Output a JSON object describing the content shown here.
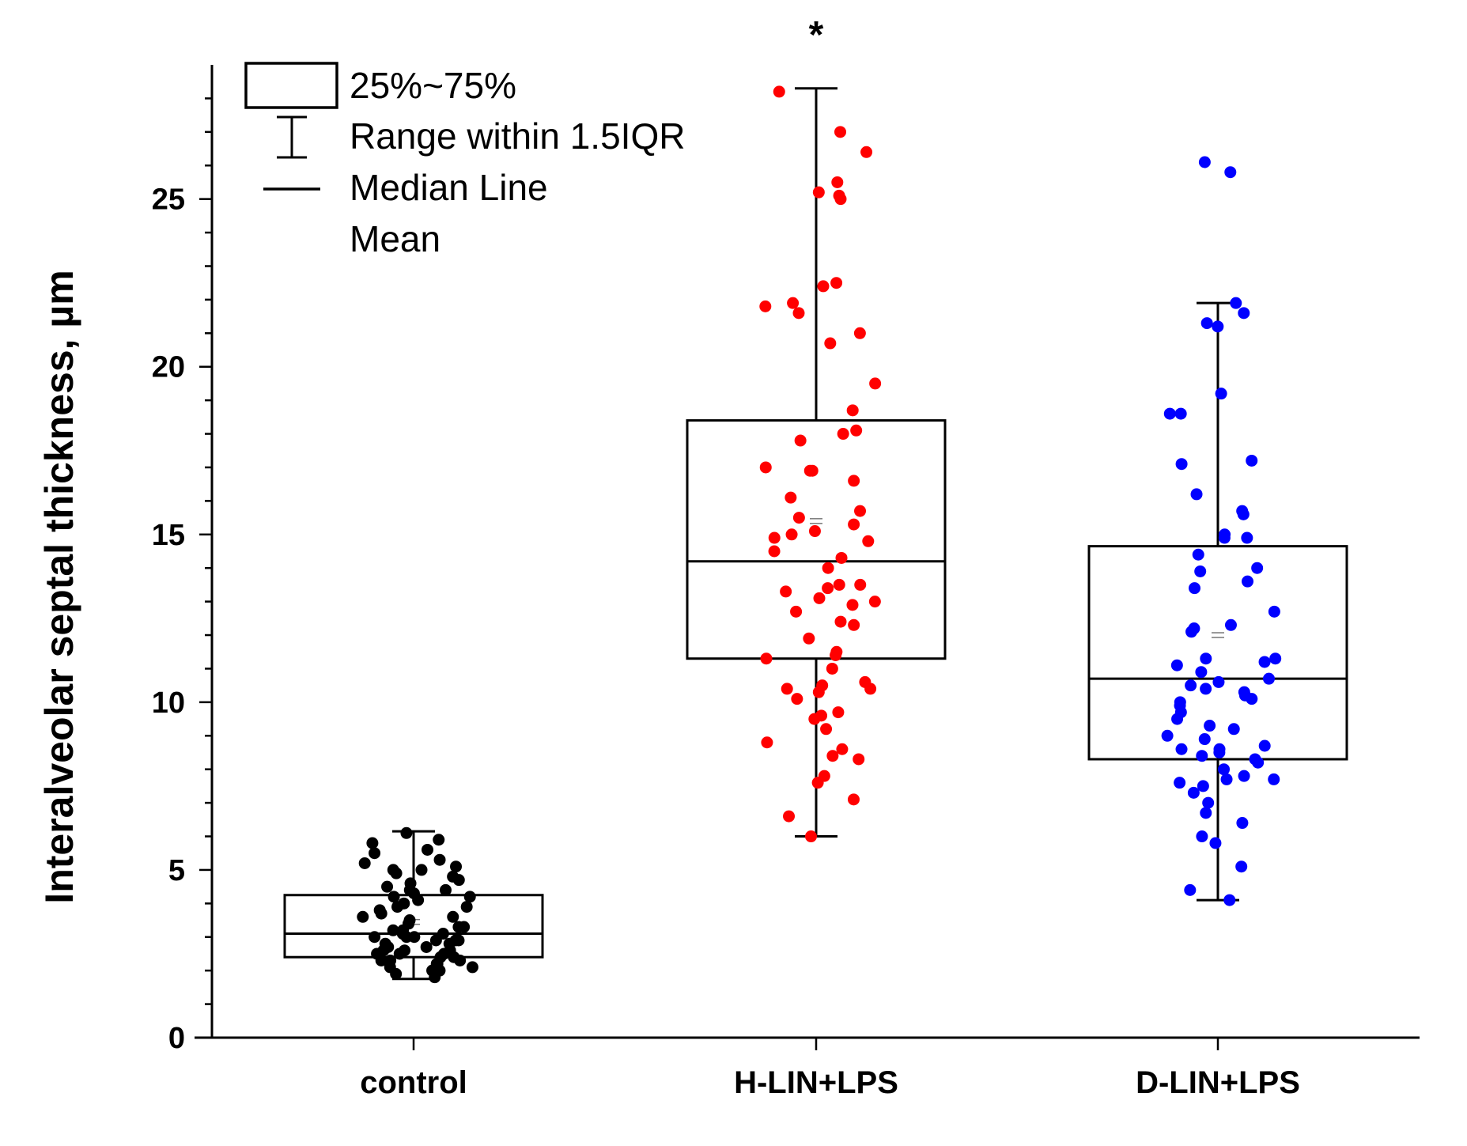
{
  "chart_data": {
    "type": "box",
    "title": "",
    "xlabel": "",
    "ylabel": "Interalveolar septal thickness, µm",
    "ylim": [
      0,
      29
    ],
    "yticks": [
      0,
      5,
      10,
      15,
      20,
      25
    ],
    "categories": [
      "control",
      "H-LIN+LPS",
      "D-LIN+LPS"
    ],
    "significance": [
      {
        "category": "H-LIN+LPS",
        "marker": "*"
      }
    ],
    "legend": {
      "position": "top-left",
      "entries": [
        "25%~75%",
        "Range within 1.5IQR",
        "Median Line",
        "Mean"
      ]
    },
    "boxes": [
      {
        "name": "control",
        "color": "#000000",
        "q1": 2.4,
        "median": 3.1,
        "q3": 4.25,
        "mean": 3.45,
        "whisker_low": 1.75,
        "whisker_high": 6.15,
        "points": [
          1.8,
          1.9,
          2.0,
          2.1,
          2.2,
          2.2,
          2.3,
          2.3,
          2.4,
          2.4,
          2.5,
          2.5,
          2.6,
          2.6,
          2.7,
          2.7,
          2.8,
          2.8,
          2.9,
          2.9,
          3.0,
          3.0,
          3.1,
          3.1,
          3.2,
          3.2,
          3.3,
          3.3,
          3.4,
          3.5,
          3.6,
          3.7,
          3.8,
          3.9,
          4.0,
          4.1,
          4.2,
          4.3,
          4.4,
          4.5,
          4.6,
          4.7,
          4.8,
          4.9,
          5.0,
          5.1,
          5.3,
          5.5,
          5.6,
          5.8,
          5.9,
          6.1,
          2.0,
          2.3,
          2.6,
          3.0,
          3.4,
          3.9,
          4.4,
          5.2,
          2.1,
          2.5,
          2.9,
          3.6,
          4.2,
          5.0
        ]
      },
      {
        "name": "H-LIN+LPS",
        "color": "#ff0000",
        "q1": 11.3,
        "median": 14.2,
        "q3": 18.4,
        "mean": 15.4,
        "whisker_low": 6.0,
        "whisker_high": 28.3,
        "points": [
          6.0,
          6.6,
          7.1,
          7.6,
          7.8,
          8.3,
          8.4,
          8.6,
          8.8,
          9.2,
          9.5,
          9.6,
          9.7,
          10.1,
          10.3,
          10.4,
          10.4,
          10.5,
          10.6,
          11.0,
          11.3,
          11.4,
          11.5,
          11.9,
          12.3,
          12.4,
          12.7,
          12.9,
          13.0,
          13.1,
          13.3,
          13.4,
          13.5,
          13.5,
          14.0,
          14.3,
          14.5,
          14.8,
          14.9,
          15.0,
          15.1,
          15.3,
          15.5,
          15.7,
          16.1,
          16.6,
          16.9,
          16.9,
          17.0,
          17.8,
          18.0,
          18.1,
          18.7,
          19.5,
          20.7,
          21.0,
          21.6,
          21.8,
          21.9,
          22.4,
          22.5,
          25.0,
          25.1,
          25.2,
          25.5,
          26.4,
          27.0,
          28.2
        ]
      },
      {
        "name": "D-LIN+LPS",
        "color": "#0000ff",
        "q1": 8.3,
        "median": 10.7,
        "q3": 14.65,
        "mean": 12.0,
        "whisker_low": 4.1,
        "whisker_high": 21.9,
        "points": [
          4.1,
          4.4,
          5.1,
          5.8,
          6.0,
          6.4,
          6.7,
          7.0,
          7.3,
          7.5,
          7.6,
          7.7,
          7.7,
          7.8,
          8.0,
          8.2,
          8.3,
          8.4,
          8.5,
          8.6,
          8.6,
          8.7,
          8.9,
          9.0,
          9.2,
          9.3,
          9.5,
          9.7,
          9.9,
          10.0,
          10.1,
          10.2,
          10.3,
          10.4,
          10.5,
          10.6,
          10.7,
          10.9,
          11.1,
          11.2,
          11.3,
          11.3,
          12.1,
          12.2,
          12.3,
          12.7,
          13.4,
          13.6,
          13.9,
          14.0,
          14.4,
          14.9,
          14.9,
          15.0,
          15.6,
          15.7,
          16.2,
          17.1,
          17.2,
          18.6,
          18.6,
          19.2,
          21.2,
          21.3,
          21.6,
          21.9,
          25.8,
          26.1
        ]
      }
    ]
  }
}
